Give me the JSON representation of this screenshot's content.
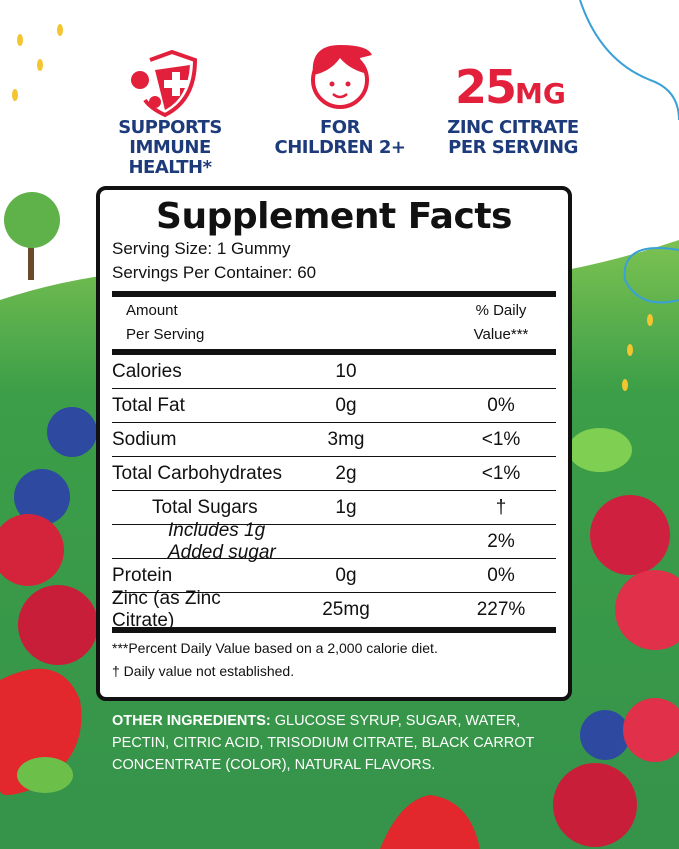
{
  "features": [
    {
      "icon": "shield-virus-icon",
      "lines": [
        "SUPPORTS",
        "IMMUNE HEALTH*"
      ]
    },
    {
      "icon": "child-face-icon",
      "lines": [
        "FOR",
        "CHILDREN 2+"
      ]
    },
    {
      "amount": "25",
      "unit": "MG",
      "lines": [
        "ZINC CITRATE",
        "PER SERVING"
      ]
    }
  ],
  "colors": {
    "red": "#e3203c",
    "navy": "#1d3a7a",
    "green": "#3a9a4a"
  },
  "facts": {
    "title": "Supplement Facts",
    "serving_size": "Serving Size: 1 Gummy",
    "servings_per_container": "Servings Per Container: 60",
    "header_amount": [
      "Amount",
      "Per Serving"
    ],
    "header_dv": [
      "% Daily",
      "Value***"
    ],
    "rows": [
      {
        "name": "Calories",
        "amount": "10",
        "dv": ""
      },
      {
        "name": "Total Fat",
        "amount": "0g",
        "dv": "0%"
      },
      {
        "name": "Sodium",
        "amount": "3mg",
        "dv": "<1%"
      },
      {
        "name": "Total Carbohydrates",
        "amount": "2g",
        "dv": "<1%"
      },
      {
        "name": "Total Sugars",
        "amount": "1g",
        "dv": "†"
      },
      {
        "name": "Includes 1g Added sugar",
        "amount": "",
        "dv": "2%"
      },
      {
        "name": "Protein",
        "amount": "0g",
        "dv": "0%"
      },
      {
        "name": "Zinc (as Zinc Citrate)",
        "amount": "25mg",
        "dv": "227%"
      }
    ],
    "footnotes": [
      "***Percent Daily Value based on a 2,000 calorie diet.",
      "† Daily value not established."
    ]
  },
  "ingredients": {
    "label": "OTHER INGREDIENTS:",
    "text": " GLUCOSE SYRUP, SUGAR, WATER, PECTIN, CITRIC ACID, TRISODIUM CITRATE, BLACK CARROT CONCENTRATE (COLOR), NATURAL FLAVORS."
  }
}
